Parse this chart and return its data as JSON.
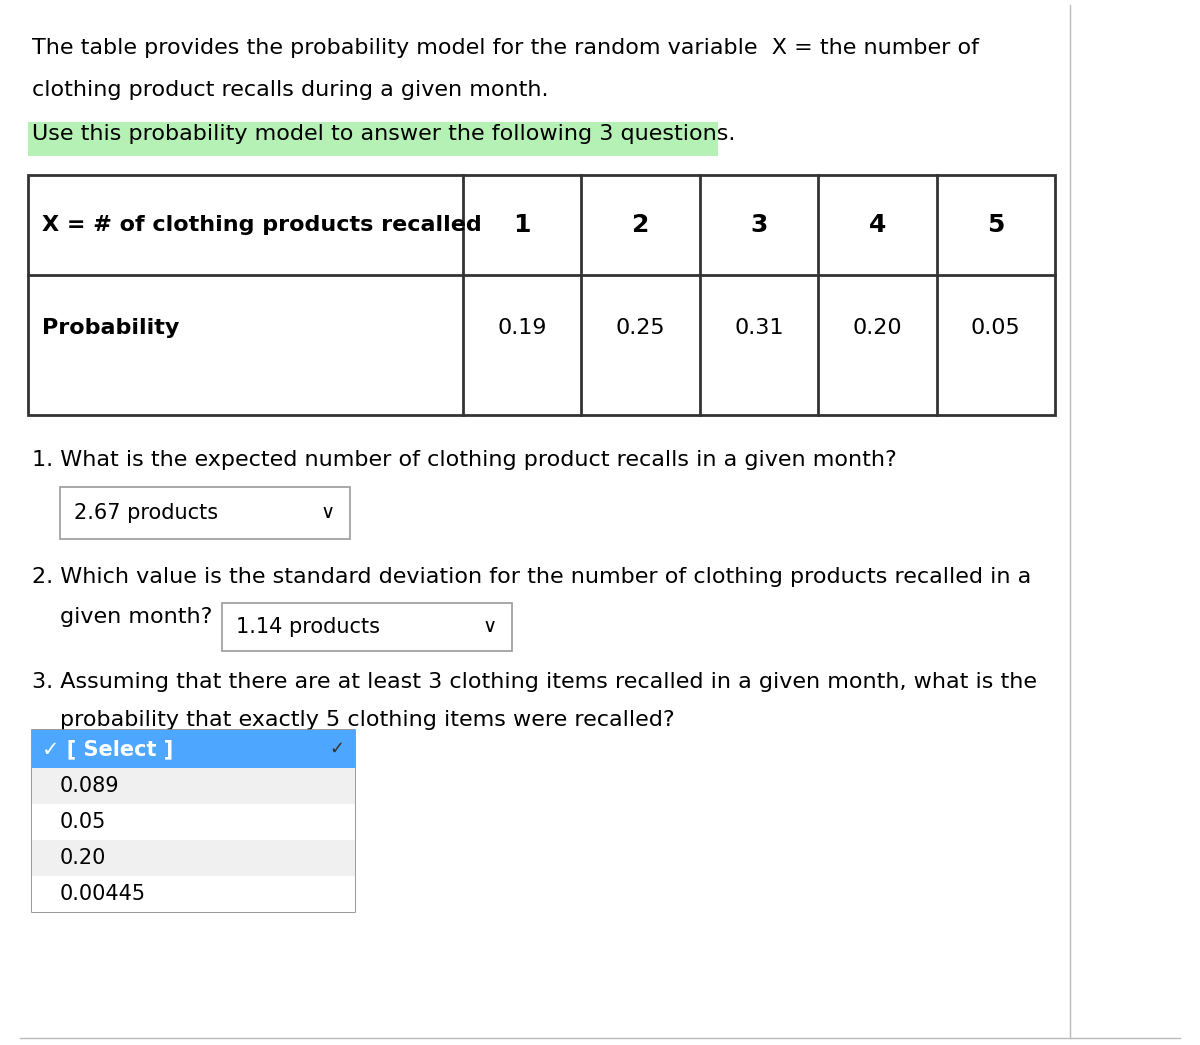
{
  "intro_text_line1": "The table provides the probability model for the random variable  X = the number of",
  "intro_text_line2": "clothing product recalls during a given month.",
  "highlight_text": "Use this probability model to answer the following 3 questions.",
  "highlight_color": "#b5f0b5",
  "table_header_col0": "X = # of clothing products recalled",
  "table_header_values": [
    "1",
    "2",
    "3",
    "4",
    "5"
  ],
  "table_row_label": "Probability",
  "table_row_values": [
    "0.19",
    "0.25",
    "0.31",
    "0.20",
    "0.05"
  ],
  "q1_text": "1. What is the expected number of clothing product recalls in a given month?",
  "q1_answer": "2.67 products",
  "q2_text_line1": "2. Which value is the standard deviation for the number of clothing products recalled in a",
  "q2_text_line2": "given month?",
  "q2_answer": "1.14 products",
  "q3_text_line1": "3. Assuming that there are at least 3 clothing items recalled in a given month, what is the",
  "q3_text_line2": "   probability that exactly 5 clothing items were recalled?",
  "q3_dropdown_selected": "✓ [ Select ]",
  "q3_dropdown_selected_bg": "#4da6ff",
  "q3_dropdown_options": [
    "0.089",
    "0.05",
    "0.20",
    "0.00445"
  ],
  "bg_color": "#ffffff",
  "text_color": "#000000",
  "font_size": 16,
  "table_font_size": 16
}
